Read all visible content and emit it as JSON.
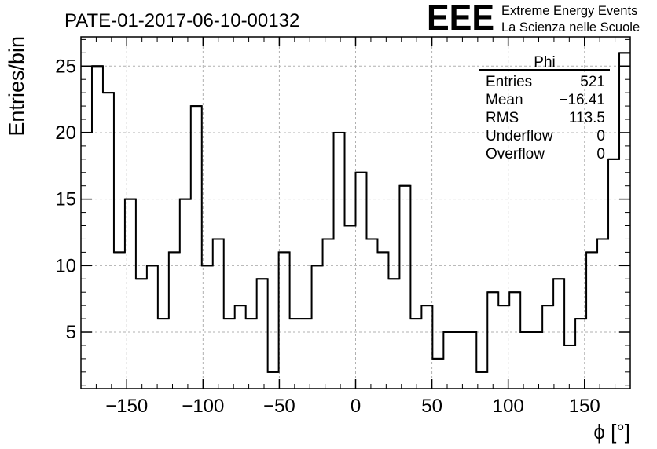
{
  "chart_data": {
    "type": "histogram",
    "title": "PATE-01-2017-06-10-00132",
    "xlabel": "ϕ [°]",
    "ylabel": "Entries/bin",
    "xlim": [
      -180,
      180
    ],
    "ylim": [
      0.75,
      27.2
    ],
    "grid": true,
    "bin_width": 7.2,
    "bin_edges_start": -180,
    "values": [
      20,
      25,
      23,
      11,
      15,
      9,
      10,
      6,
      11,
      15,
      22,
      10,
      12,
      6,
      7,
      6,
      9,
      2,
      11,
      6,
      6,
      10,
      12,
      20,
      13,
      17,
      12,
      11,
      9,
      16,
      6,
      7,
      3,
      5,
      5,
      5,
      2,
      8,
      7,
      8,
      5,
      5,
      7,
      9,
      4,
      6,
      11,
      12,
      18,
      26
    ],
    "x_ticks": [
      -150,
      -100,
      -50,
      0,
      50,
      100,
      150
    ],
    "x_tick_labels": [
      "−150",
      "−100",
      "−50",
      "0",
      "50",
      "100",
      "150"
    ],
    "y_ticks": [
      5,
      10,
      15,
      20,
      25
    ],
    "y_tick_labels": [
      "5",
      "10",
      "15",
      "20",
      "25"
    ],
    "stats_box": {
      "title": "Phi",
      "rows": [
        {
          "label": "Entries",
          "value": "521"
        },
        {
          "label": "Mean",
          "value": "−16.41"
        },
        {
          "label": "RMS",
          "value": "113.5"
        },
        {
          "label": "Underflow",
          "value": "0"
        },
        {
          "label": "Overflow",
          "value": "0"
        }
      ]
    }
  },
  "logo": {
    "mark": "EEE",
    "line1": "Extreme Energy Events",
    "line2": "La Scienza nelle Scuole",
    "color": "#1a1aff"
  }
}
